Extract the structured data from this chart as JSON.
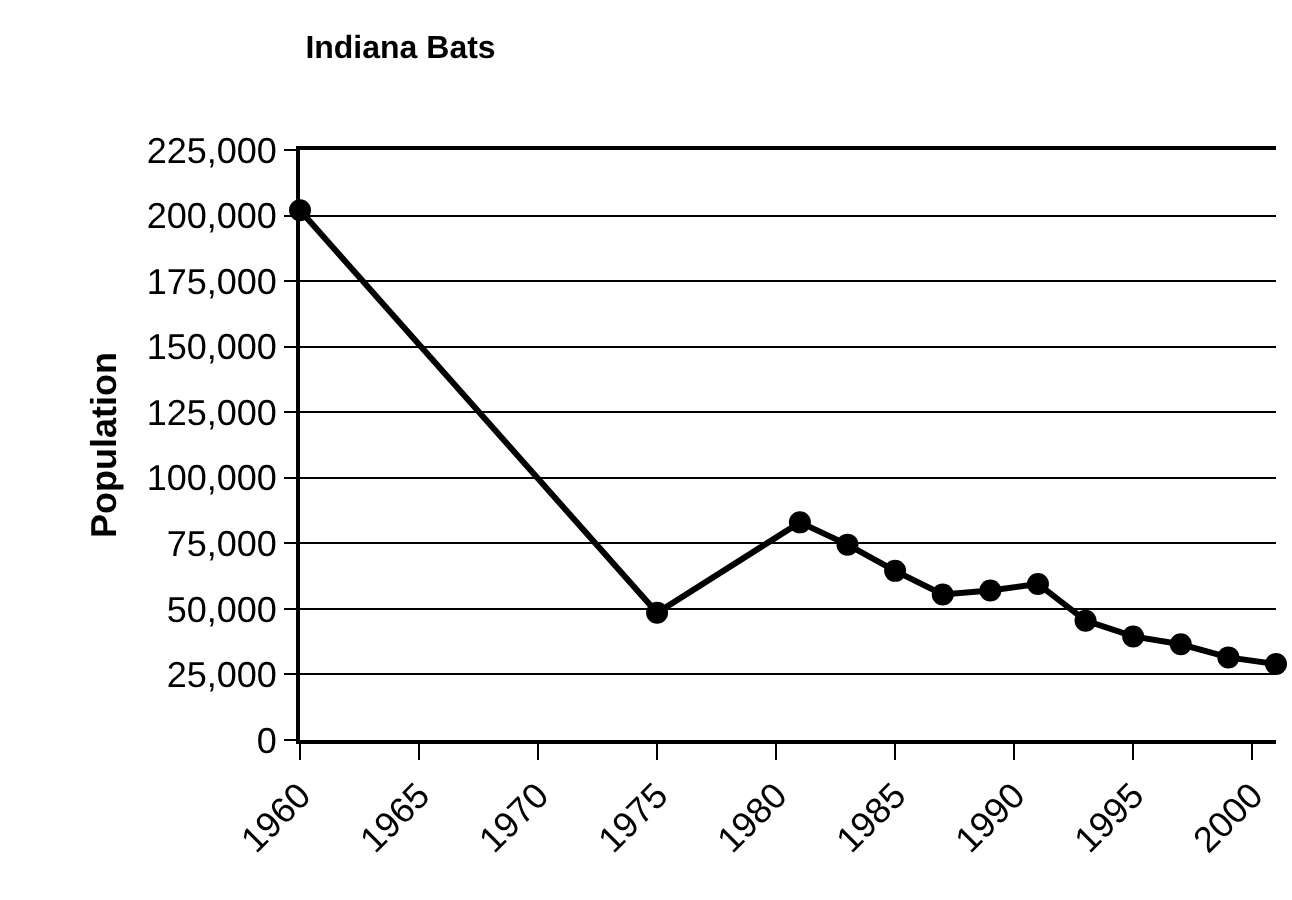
{
  "chart_data": {
    "type": "line",
    "title": "Indiana Bats",
    "ylabel": "Population",
    "x": [
      1960,
      1975,
      1981,
      1983,
      1985,
      1987,
      1989,
      1991,
      1993,
      1995,
      1997,
      1999,
      2001
    ],
    "series": [
      {
        "color": "#000000",
        "values": [
          202000,
          48500,
          83000,
          74500,
          64500,
          55500,
          57000,
          59500,
          45500,
          39500,
          36500,
          31500,
          29000
        ]
      }
    ],
    "xlim": [
      1960,
      2001
    ],
    "xticks": [
      1960,
      1965,
      1970,
      1975,
      1980,
      1985,
      1990,
      1995,
      2000
    ],
    "ylim": [
      0,
      225000
    ],
    "yticks": [
      {
        "value": 0,
        "label": "0"
      },
      {
        "value": 25000,
        "label": "25,000"
      },
      {
        "value": 50000,
        "label": "50,000"
      },
      {
        "value": 75000,
        "label": "75,000"
      },
      {
        "value": 100000,
        "label": "100,000"
      },
      {
        "value": 125000,
        "label": "125,000"
      },
      {
        "value": 150000,
        "label": "150,000"
      },
      {
        "value": 175000,
        "label": "175,000"
      },
      {
        "value": 200000,
        "label": "200,000"
      },
      {
        "value": 225000,
        "label": "225,000"
      }
    ],
    "grid": "y",
    "marker": "circle",
    "line_style": "solid"
  }
}
